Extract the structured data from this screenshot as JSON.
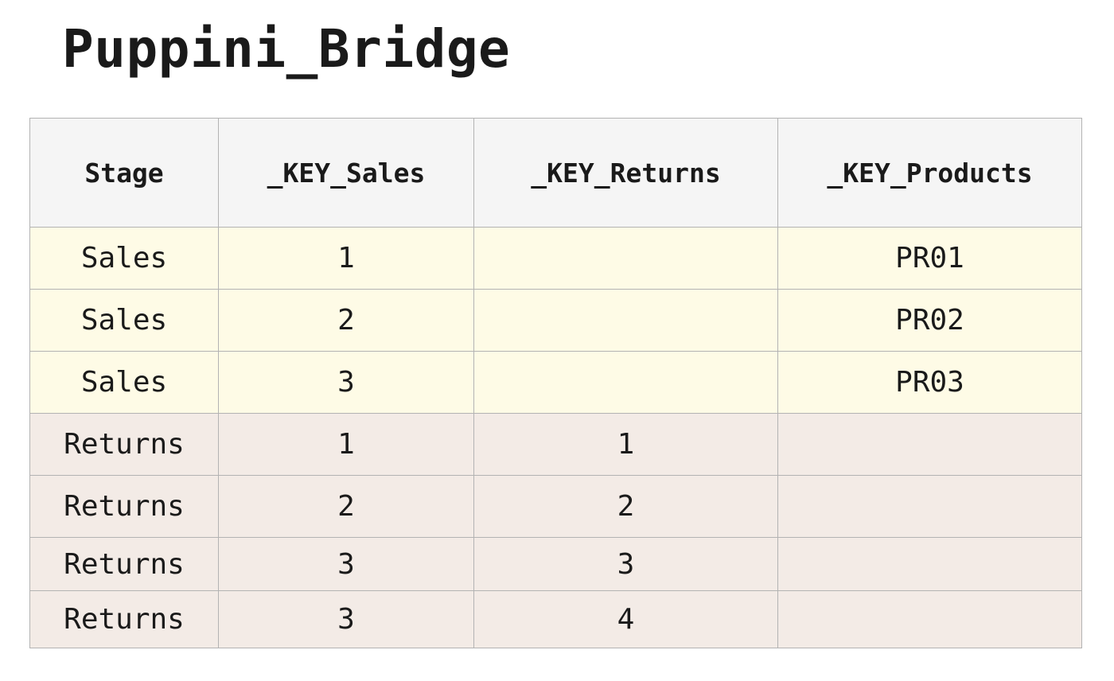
{
  "title": "Puppini_Bridge",
  "table": {
    "headers": [
      "Stage",
      "_KEY_Sales",
      "_KEY_Returns",
      "_KEY_Products"
    ],
    "rows": [
      [
        "Sales",
        "1",
        "",
        "PR01"
      ],
      [
        "Sales",
        "2",
        "",
        "PR02"
      ],
      [
        "Sales",
        "3",
        "",
        "PR03"
      ],
      [
        "Returns",
        "1",
        "1",
        ""
      ],
      [
        "Returns",
        "2",
        "2",
        ""
      ],
      [
        "Returns",
        "3",
        "3",
        ""
      ],
      [
        "Returns",
        "3",
        "4",
        ""
      ]
    ]
  },
  "colors": {
    "header_bg": "#f5f5f5",
    "sales_row_bg": "#fefbe6",
    "returns_row_bg": "#f3ebe6",
    "border": "#b3b3b3"
  }
}
